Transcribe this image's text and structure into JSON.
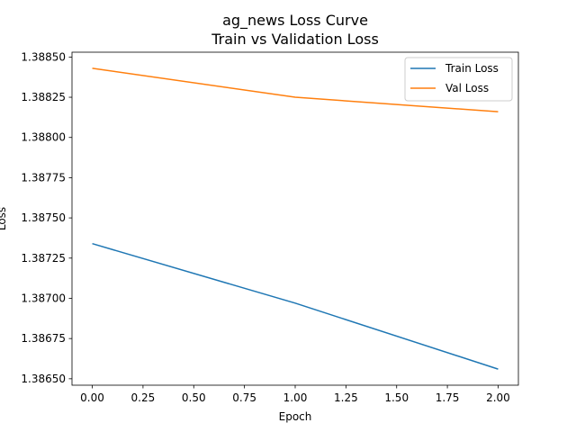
{
  "chart_data": {
    "type": "line",
    "title": "ag_news Loss Curve",
    "subtitle": "Train vs Validation Loss",
    "xlabel": "Epoch",
    "ylabel": "Loss",
    "x": [
      0,
      1,
      2
    ],
    "xlim": [
      -0.1,
      2.1
    ],
    "ylim": [
      1.38646,
      1.38853
    ],
    "xticks": [
      0.0,
      0.25,
      0.5,
      0.75,
      1.0,
      1.25,
      1.5,
      1.75,
      2.0
    ],
    "xtick_labels": [
      "0.00",
      "0.25",
      "0.50",
      "0.75",
      "1.00",
      "1.25",
      "1.50",
      "1.75",
      "2.00"
    ],
    "yticks": [
      1.3865,
      1.38675,
      1.387,
      1.38725,
      1.3875,
      1.38775,
      1.388,
      1.38825,
      1.3885
    ],
    "ytick_labels": [
      "1.38650",
      "1.38675",
      "1.38700",
      "1.38725",
      "1.38750",
      "1.38775",
      "1.38800",
      "1.38825",
      "1.38850"
    ],
    "grid": false,
    "legend_position": "top-right",
    "series": [
      {
        "name": "Train Loss",
        "color": "#1f77b4",
        "values": [
          1.38734,
          1.38697,
          1.38656
        ]
      },
      {
        "name": "Val Loss",
        "color": "#ff7f0e",
        "values": [
          1.38843,
          1.38825,
          1.38816
        ]
      }
    ]
  }
}
